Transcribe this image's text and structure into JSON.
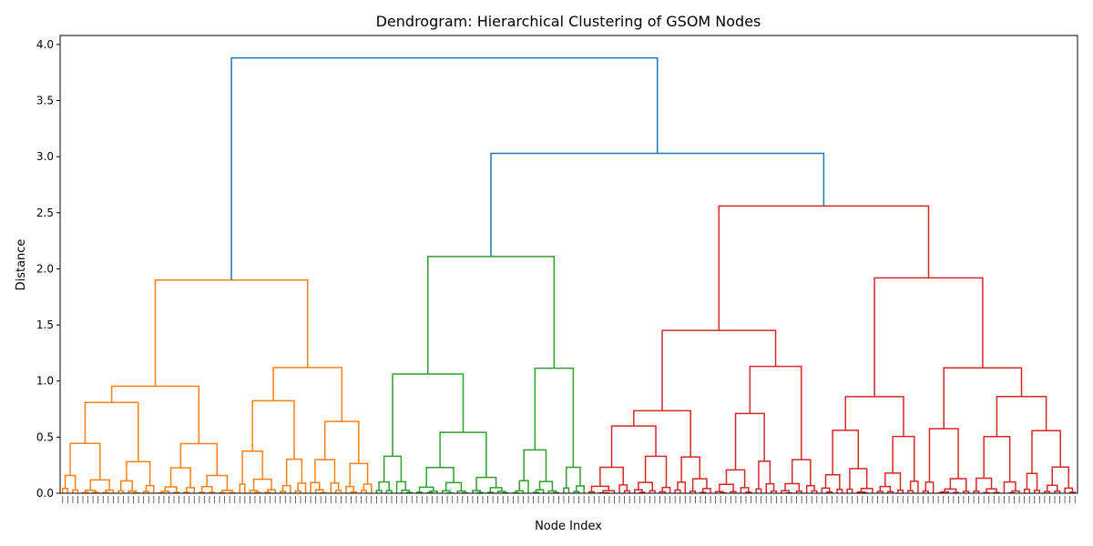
{
  "chart_data": {
    "type": "dendrogram",
    "title": "Dendrogram: Hierarchical Clustering of GSOM Nodes",
    "xlabel": "Node Index",
    "ylabel": "Distance",
    "ylim": [
      0,
      4.08
    ],
    "yticks": [
      "0.0",
      "0.5",
      "1.0",
      "1.5",
      "2.0",
      "2.5",
      "3.0",
      "3.5",
      "4.0"
    ],
    "grid": false,
    "colors": {
      "above_threshold": "#1f77b4",
      "cluster_1": "#ff7f0e",
      "cluster_2": "#2ca02c",
      "cluster_3": "#d62728"
    },
    "clusters": [
      {
        "color": "#ff7f0e",
        "leaves": 62,
        "merge_height": 1.9
      },
      {
        "color": "#2ca02c",
        "leaves": 42,
        "merge_height": 2.11
      },
      {
        "color": "#d62728",
        "leaves": 97,
        "merge_height": 2.56
      }
    ],
    "top_links": [
      {
        "height": 3.03,
        "joins": [
          "green cluster",
          "red cluster"
        ]
      },
      {
        "height": 3.88,
        "joins": [
          "orange cluster",
          "green + red"
        ]
      }
    ]
  }
}
